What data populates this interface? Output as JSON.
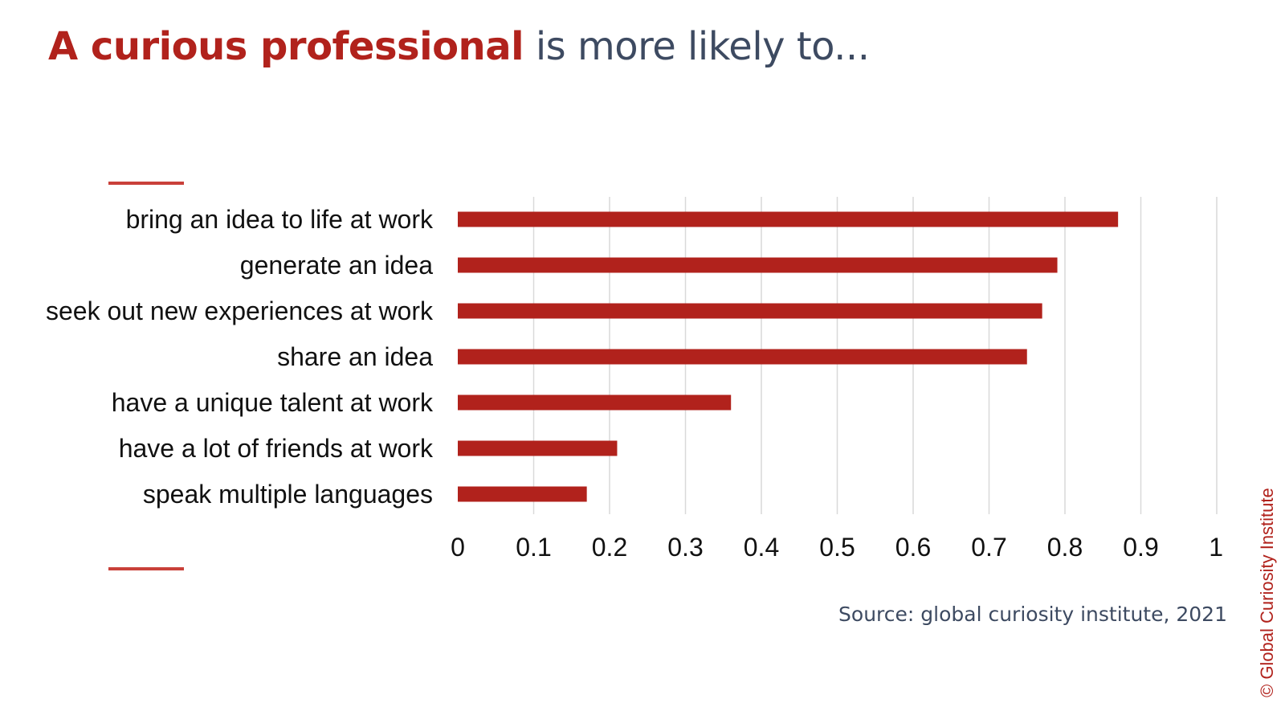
{
  "header": {
    "title_accent": "A curious professional",
    "title_rest": "is more likely to..."
  },
  "chart_data": {
    "type": "bar",
    "orientation": "horizontal",
    "title": "A curious professional is more likely to...",
    "categories": [
      "bring an idea to life at work",
      "generate an idea",
      "seek out new experiences at work",
      "share an idea",
      "have a unique talent at work",
      "have a lot of friends at work",
      "speak multiple languages"
    ],
    "values": [
      0.87,
      0.79,
      0.77,
      0.75,
      0.36,
      0.21,
      0.17
    ],
    "xlim": [
      0,
      1
    ],
    "xticks": [
      "0",
      "0.1",
      "0.2",
      "0.3",
      "0.4",
      "0.5",
      "0.6",
      "0.7",
      "0.8",
      "0.9",
      "1"
    ],
    "xlabel": "",
    "ylabel": "",
    "grid": "vertical",
    "legend": "none",
    "bar_color": "#b1221c"
  },
  "footer": {
    "source": "Source: global curiosity institute, 2021",
    "copyright": "© Global Curiosity Institute"
  }
}
